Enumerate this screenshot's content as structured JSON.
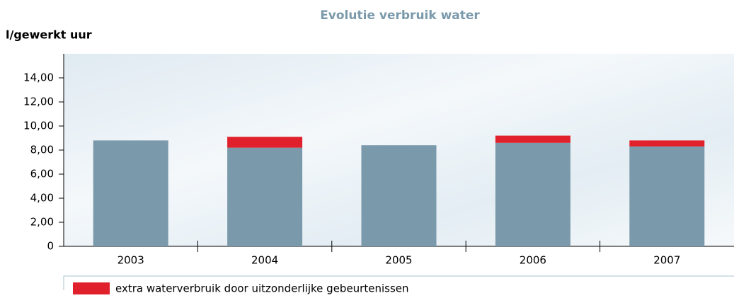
{
  "chart_data": {
    "type": "bar",
    "stacked": true,
    "title": "Evolutie verbruik water",
    "y_label": "l/gewerkt uur",
    "categories": [
      "2003",
      "2004",
      "2005",
      "2006",
      "2007"
    ],
    "series": [
      {
        "color": "#7a99ab",
        "values": [
          8.8,
          8.2,
          8.4,
          8.6,
          8.3
        ]
      },
      {
        "name": "extra waterverbruik door uitzonderlijke gebeurtenissen",
        "color": "#e0202a",
        "values": [
          null,
          0.9,
          null,
          0.6,
          0.5
        ]
      }
    ],
    "ylim": [
      0,
      16
    ],
    "yticks": [
      0,
      {
        "value": 2,
        "label": "2,00"
      },
      {
        "value": 4,
        "label": "4,00"
      },
      {
        "value": 6,
        "label": "6,00"
      },
      {
        "value": 8,
        "label": "8,00"
      },
      {
        "value": 10,
        "label": "10,00"
      },
      {
        "value": 12,
        "label": "12,00"
      },
      {
        "value": 14,
        "label": "14,00"
      }
    ]
  }
}
